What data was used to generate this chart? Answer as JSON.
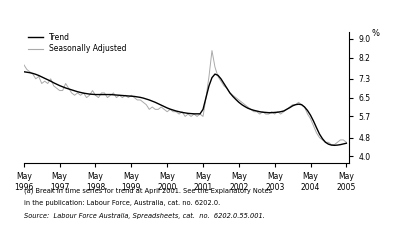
{
  "ylabel_right": "%",
  "yticks": [
    4.0,
    4.8,
    5.7,
    6.5,
    7.3,
    8.2,
    9.0
  ],
  "xlim_months": [
    0,
    109
  ],
  "ylim": [
    3.7,
    9.3
  ],
  "x_tick_positions": [
    0,
    12,
    24,
    36,
    48,
    60,
    72,
    84,
    96,
    108
  ],
  "x_tick_labels": [
    "May\n1996",
    "May\n1997",
    "May\n1998",
    "May\n1999",
    "May\n2000",
    "May\n2001",
    "May\n2002",
    "May\n2003",
    "May\n2004",
    "May\n2005"
  ],
  "footnote1": "(a) Break in time series for trend at April 2001. See the Explanatory Notes",
  "footnote2": "in the publication: Labour Force, Australia, cat. no. 6202.0.",
  "source": "Source:  Labour Force Australia, Spreadsheets, cat.  no.  6202.0.55.001.",
  "trend_color": "#000000",
  "seasonal_color": "#aaaaaa",
  "background_color": "#ffffff",
  "trend_data": [
    7.6,
    7.58,
    7.56,
    7.53,
    7.49,
    7.44,
    7.38,
    7.32,
    7.26,
    7.2,
    7.13,
    7.07,
    7.01,
    6.96,
    6.91,
    6.87,
    6.83,
    6.79,
    6.75,
    6.72,
    6.69,
    6.67,
    6.65,
    6.64,
    6.63,
    6.63,
    6.63,
    6.63,
    6.63,
    6.63,
    6.62,
    6.61,
    6.6,
    6.59,
    6.58,
    6.57,
    6.56,
    6.55,
    6.53,
    6.51,
    6.48,
    6.44,
    6.4,
    6.35,
    6.3,
    6.24,
    6.18,
    6.12,
    6.06,
    6.01,
    5.97,
    5.93,
    5.9,
    5.87,
    5.85,
    5.83,
    5.82,
    5.81,
    5.81,
    5.81,
    6.0,
    6.5,
    7.0,
    7.35,
    7.5,
    7.45,
    7.3,
    7.1,
    6.9,
    6.7,
    6.55,
    6.42,
    6.3,
    6.2,
    6.12,
    6.05,
    6.0,
    5.96,
    5.93,
    5.9,
    5.88,
    5.87,
    5.86,
    5.86,
    5.87,
    5.88,
    5.9,
    5.93,
    6.0,
    6.07,
    6.15,
    6.2,
    6.22,
    6.2,
    6.1,
    5.95,
    5.75,
    5.5,
    5.22,
    4.95,
    4.75,
    4.6,
    4.52,
    4.48,
    4.47,
    4.48,
    4.5,
    4.53,
    4.56
  ],
  "seasonal_data": [
    7.9,
    7.7,
    7.6,
    7.5,
    7.3,
    7.4,
    7.1,
    7.2,
    7.1,
    7.3,
    7.0,
    6.9,
    6.8,
    6.8,
    7.1,
    6.9,
    6.7,
    6.6,
    6.7,
    6.6,
    6.7,
    6.5,
    6.6,
    6.8,
    6.6,
    6.5,
    6.7,
    6.7,
    6.5,
    6.6,
    6.7,
    6.5,
    6.6,
    6.5,
    6.6,
    6.5,
    6.6,
    6.5,
    6.4,
    6.4,
    6.3,
    6.2,
    6.0,
    6.1,
    6.0,
    6.0,
    6.1,
    6.0,
    5.9,
    6.0,
    5.9,
    5.9,
    5.8,
    5.9,
    5.7,
    5.8,
    5.7,
    5.8,
    5.7,
    5.8,
    5.7,
    6.5,
    7.4,
    8.5,
    7.8,
    7.4,
    7.2,
    7.0,
    6.9,
    6.7,
    6.6,
    6.5,
    6.4,
    6.3,
    6.2,
    6.1,
    6.0,
    5.9,
    5.9,
    5.8,
    5.9,
    5.8,
    5.8,
    5.9,
    5.8,
    5.9,
    5.8,
    5.9,
    6.0,
    6.1,
    6.2,
    6.2,
    6.3,
    6.2,
    6.1,
    5.8,
    5.6,
    5.3,
    5.0,
    4.8,
    4.7,
    4.6,
    4.6,
    4.5,
    4.5,
    4.6,
    4.7,
    4.7,
    4.6
  ]
}
